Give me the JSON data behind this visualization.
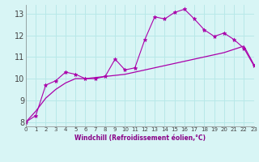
{
  "xlabel": "Windchill (Refroidissement éolien,°C)",
  "bg_color": "#d8f5f5",
  "grid_color": "#b8e8e8",
  "line_color": "#aa00aa",
  "x": [
    0,
    1,
    2,
    3,
    4,
    5,
    6,
    7,
    8,
    9,
    10,
    11,
    12,
    13,
    14,
    15,
    16,
    17,
    18,
    19,
    20,
    21,
    22,
    23
  ],
  "curve1": [
    8.0,
    8.3,
    9.7,
    9.9,
    10.3,
    10.2,
    10.0,
    10.0,
    10.1,
    10.9,
    10.4,
    10.5,
    11.8,
    12.85,
    12.75,
    13.05,
    13.2,
    12.75,
    12.25,
    11.95,
    12.1,
    11.8,
    11.4,
    10.6
  ],
  "curve2": [
    8.0,
    8.5,
    9.1,
    9.5,
    9.8,
    10.0,
    10.0,
    10.05,
    10.1,
    10.15,
    10.2,
    10.3,
    10.4,
    10.5,
    10.6,
    10.7,
    10.8,
    10.9,
    11.0,
    11.1,
    11.2,
    11.35,
    11.5,
    10.65
  ],
  "xlim": [
    0,
    23
  ],
  "ylim": [
    7.8,
    13.4
  ],
  "yticks": [
    8,
    9,
    10,
    11,
    12,
    13
  ],
  "xticks": [
    0,
    1,
    2,
    3,
    4,
    5,
    6,
    7,
    8,
    9,
    10,
    11,
    12,
    13,
    14,
    15,
    16,
    17,
    18,
    19,
    20,
    21,
    22,
    23
  ]
}
